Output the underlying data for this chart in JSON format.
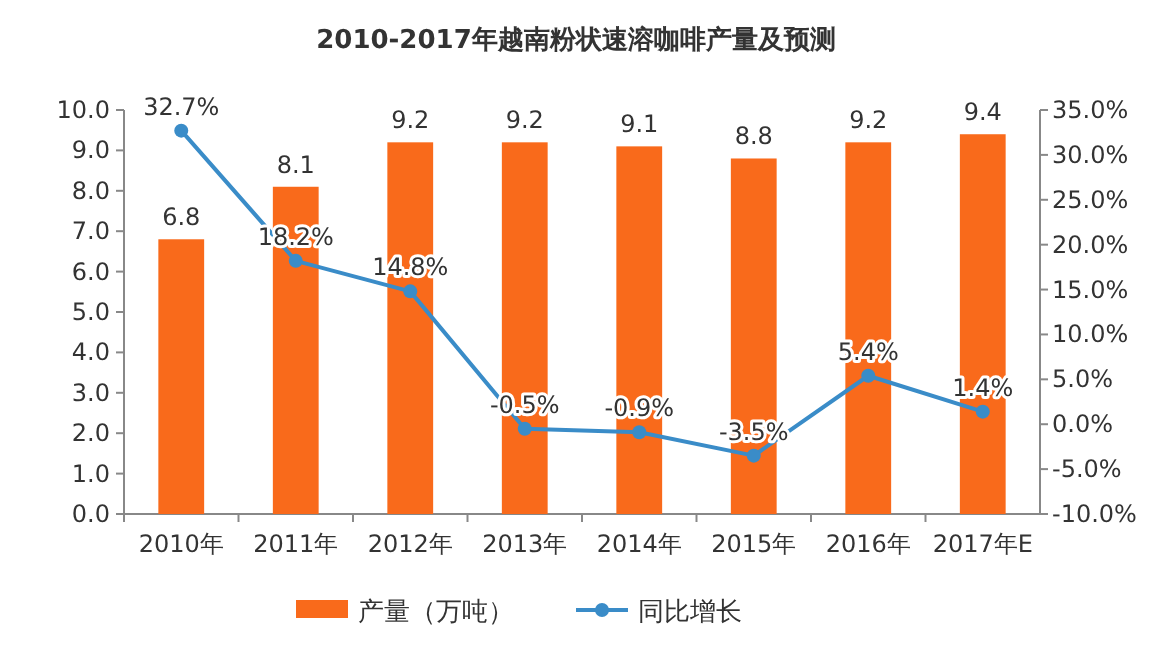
{
  "chart_data": {
    "type": "bar",
    "title": "2010-2017年越南粉状速溶咖啡产量及预测",
    "categories": [
      "2010年",
      "2011年",
      "2012年",
      "2013年",
      "2014年",
      "2015年",
      "2016年",
      "2017年E"
    ],
    "series": [
      {
        "name": "产量（万吨）",
        "color": "#f96a1b",
        "values": [
          6.8,
          8.1,
          9.2,
          9.2,
          9.1,
          8.8,
          9.2,
          9.4
        ],
        "value_labels": [
          "6.8",
          "8.1",
          "9.2",
          "9.2",
          "9.1",
          "8.8",
          "9.2",
          "9.4"
        ]
      },
      {
        "name": "同比增长",
        "type": "line",
        "axis": "y2",
        "color": "#3a8cc8",
        "marker": "circle",
        "values": [
          32.7,
          18.2,
          14.8,
          -0.5,
          -0.9,
          -3.5,
          5.4,
          1.4
        ],
        "value_labels": [
          "32.7%",
          "18.2%",
          "14.8%",
          "-0.5%",
          "-0.9%",
          "-3.5%",
          "5.4%",
          "1.4%"
        ]
      }
    ],
    "ylim": [
      0,
      10
    ],
    "yticks": [
      {
        "value": 0,
        "label": "0.0"
      },
      {
        "value": 1,
        "label": "1.0"
      },
      {
        "value": 2,
        "label": "2.0"
      },
      {
        "value": 3,
        "label": "3.0"
      },
      {
        "value": 4,
        "label": "4.0"
      },
      {
        "value": 5,
        "label": "5.0"
      },
      {
        "value": 6,
        "label": "6.0"
      },
      {
        "value": 7,
        "label": "7.0"
      },
      {
        "value": 8,
        "label": "8.0"
      },
      {
        "value": 9,
        "label": "9.0"
      },
      {
        "value": 10,
        "label": "10.0"
      }
    ],
    "y2lim": [
      -10,
      35
    ],
    "y2ticks": [
      {
        "value": -10,
        "label": "-10.0%"
      },
      {
        "value": -5,
        "label": "-5.0%"
      },
      {
        "value": 0,
        "label": "0.0%"
      },
      {
        "value": 5,
        "label": "5.0%"
      },
      {
        "value": 10,
        "label": "10.0%"
      },
      {
        "value": 15,
        "label": "15.0%"
      },
      {
        "value": 20,
        "label": "20.0%"
      },
      {
        "value": 25,
        "label": "25.0%"
      },
      {
        "value": 30,
        "label": "30.0%"
      },
      {
        "value": 35,
        "label": "35.0%"
      }
    ],
    "grid": false,
    "legend": "bottom"
  }
}
